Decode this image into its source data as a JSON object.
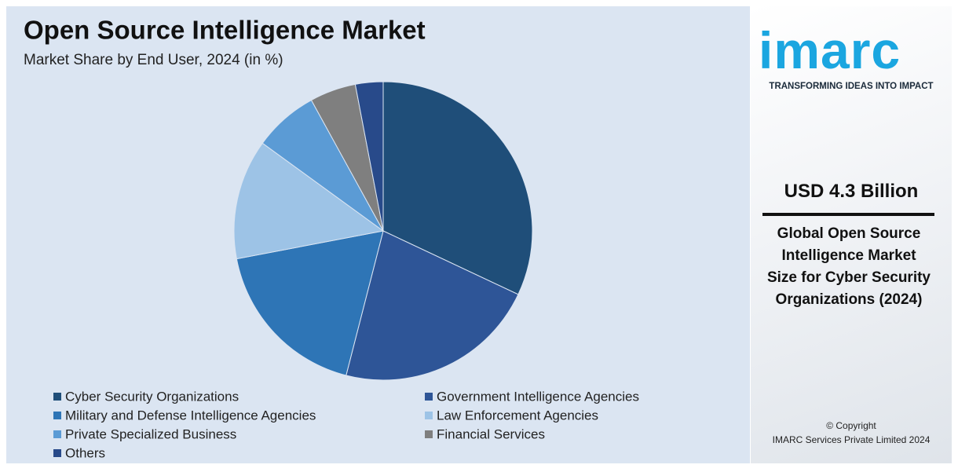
{
  "chart_data": {
    "type": "pie",
    "title": "Open Source Intelligence Market",
    "subtitle": "Market Share by End User, 2024 (in %)",
    "categories": [
      "Cyber Security Organizations",
      "Government Intelligence Agencies",
      "Military and Defense Intelligence Agencies",
      "Law Enforcement Agencies",
      "Private Specialized Business",
      "Financial Services",
      "Others"
    ],
    "values": [
      32,
      22,
      18,
      13,
      7,
      5,
      3
    ],
    "colors": [
      "#1f4e79",
      "#2e5597",
      "#2e75b6",
      "#9dc3e6",
      "#5b9bd5",
      "#7f7f7f",
      "#284a8a"
    ]
  },
  "sidebar": {
    "logo": "imarc",
    "tagline": "TRANSFORMING IDEAS INTO IMPACT",
    "headline": "USD 4.3 Billion",
    "description": "Global Open Source Intelligence Market Size for Cyber Security Organizations (2024)",
    "copyright": "© Copyright",
    "company": "IMARC Services Private Limited 2024"
  }
}
